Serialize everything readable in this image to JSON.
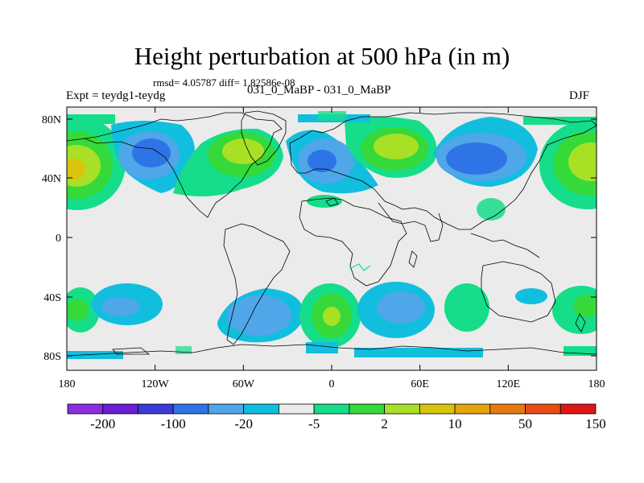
{
  "title": "Height perturbation at 500 hPa (in m)",
  "subtitle": "rmsd= 4.05787 diff= 1.82586e-08",
  "left_string": "Expt = teydg1-teydg",
  "center_string": "031_0_MaBP - 031_0_MaBP",
  "right_string": "DJF",
  "x_ticks": [
    "180",
    "120W",
    "60W",
    "0",
    "60E",
    "120E",
    "180"
  ],
  "y_ticks": [
    "80N",
    "40N",
    "0",
    "40S",
    "80S"
  ],
  "colorbar": {
    "colors": [
      "#8c2de0",
      "#6a1fd4",
      "#3a3ad8",
      "#2f74e6",
      "#4fa6e8",
      "#12bede",
      "#ebebeb",
      "#15dd8a",
      "#35d93a",
      "#a8e026",
      "#d9c40c",
      "#e3a50b",
      "#e67a0f",
      "#e54d14",
      "#e01717"
    ],
    "labels": [
      "-200",
      "-100",
      "-20",
      "-5",
      "2",
      "10",
      "50",
      "150"
    ]
  },
  "colors": {
    "background": "#ebebeb",
    "coastline": "#000000"
  }
}
